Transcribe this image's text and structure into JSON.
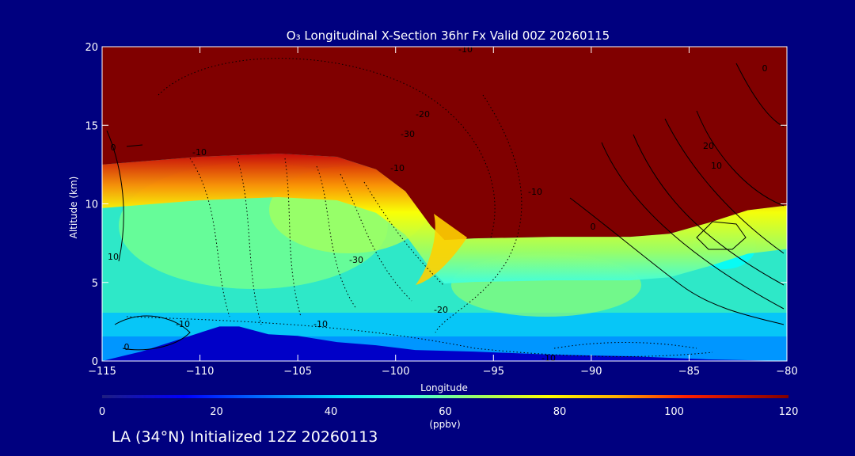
{
  "chart_data": {
    "type": "heatmap",
    "title": "O₃ Longitudinal X-Section 36hr  Fx Valid 00Z 20260115",
    "xlabel": "Longitude",
    "ylabel": "Altitude (km)",
    "xlim": [
      -115,
      -80
    ],
    "ylim": [
      0,
      20
    ],
    "x_ticks": [
      -115,
      -110,
      -105,
      -100,
      -95,
      -90,
      -85,
      -80
    ],
    "x_tick_labels": [
      "−115",
      "−110",
      "−105",
      "−100",
      "−95",
      "−90",
      "−85",
      "−80"
    ],
    "y_ticks": [
      0,
      5,
      10,
      15,
      20
    ],
    "y_tick_labels": [
      "0",
      "5",
      "10",
      "15",
      "20"
    ],
    "colorbar": {
      "label": "(ppbv)",
      "min": 0,
      "max": 120,
      "ticks": [
        0,
        20,
        40,
        60,
        80,
        100,
        120
      ],
      "tick_labels": [
        "0",
        "20",
        "40",
        "60",
        "80",
        "100",
        "120"
      ]
    },
    "contour_labels": [
      "-10",
      "-20",
      "-30",
      "-10",
      "-10",
      "-10",
      "-30",
      "-10",
      "-20",
      "-10",
      "0",
      "10",
      "20",
      "10",
      "0",
      "0",
      "-10",
      "0"
    ],
    "terrain": [
      {
        "x": -115,
        "y": 0.0
      },
      {
        "x": -114,
        "y": 0.3
      },
      {
        "x": -113,
        "y": 0.6
      },
      {
        "x": -111,
        "y": 1.4
      },
      {
        "x": -109,
        "y": 2.2
      },
      {
        "x": -108,
        "y": 2.2
      },
      {
        "x": -106.5,
        "y": 1.7
      },
      {
        "x": -105,
        "y": 1.6
      },
      {
        "x": -103,
        "y": 1.2
      },
      {
        "x": -101,
        "y": 1.0
      },
      {
        "x": -99,
        "y": 0.7
      },
      {
        "x": -96,
        "y": 0.6
      },
      {
        "x": -92,
        "y": 0.4
      },
      {
        "x": -88,
        "y": 0.3
      },
      {
        "x": -84,
        "y": 0.1
      },
      {
        "x": -80,
        "y": 0.0
      }
    ],
    "tropopause": [
      {
        "x": -115,
        "y": 12.5
      },
      {
        "x": -113,
        "y": 12.7
      },
      {
        "x": -110,
        "y": 13.0
      },
      {
        "x": -106,
        "y": 13.2
      },
      {
        "x": -103,
        "y": 13.0
      },
      {
        "x": -101,
        "y": 12.2
      },
      {
        "x": -99.5,
        "y": 10.8
      },
      {
        "x": -98.2,
        "y": 8.6
      },
      {
        "x": -97.5,
        "y": 7.7
      },
      {
        "x": -96,
        "y": 7.8
      },
      {
        "x": -92,
        "y": 7.9
      },
      {
        "x": -88,
        "y": 7.9
      },
      {
        "x": -86,
        "y": 8.1
      },
      {
        "x": -84,
        "y": 8.8
      },
      {
        "x": -82,
        "y": 9.6
      },
      {
        "x": -80,
        "y": 9.9
      }
    ]
  },
  "footer": "LA (34°N) Initialized 12Z 20260113",
  "colors": {
    "background": "#00007f",
    "axis": "#ffffff",
    "text": "#ffffff",
    "stratosphere": "#800000",
    "terrain": "#0000c8"
  }
}
